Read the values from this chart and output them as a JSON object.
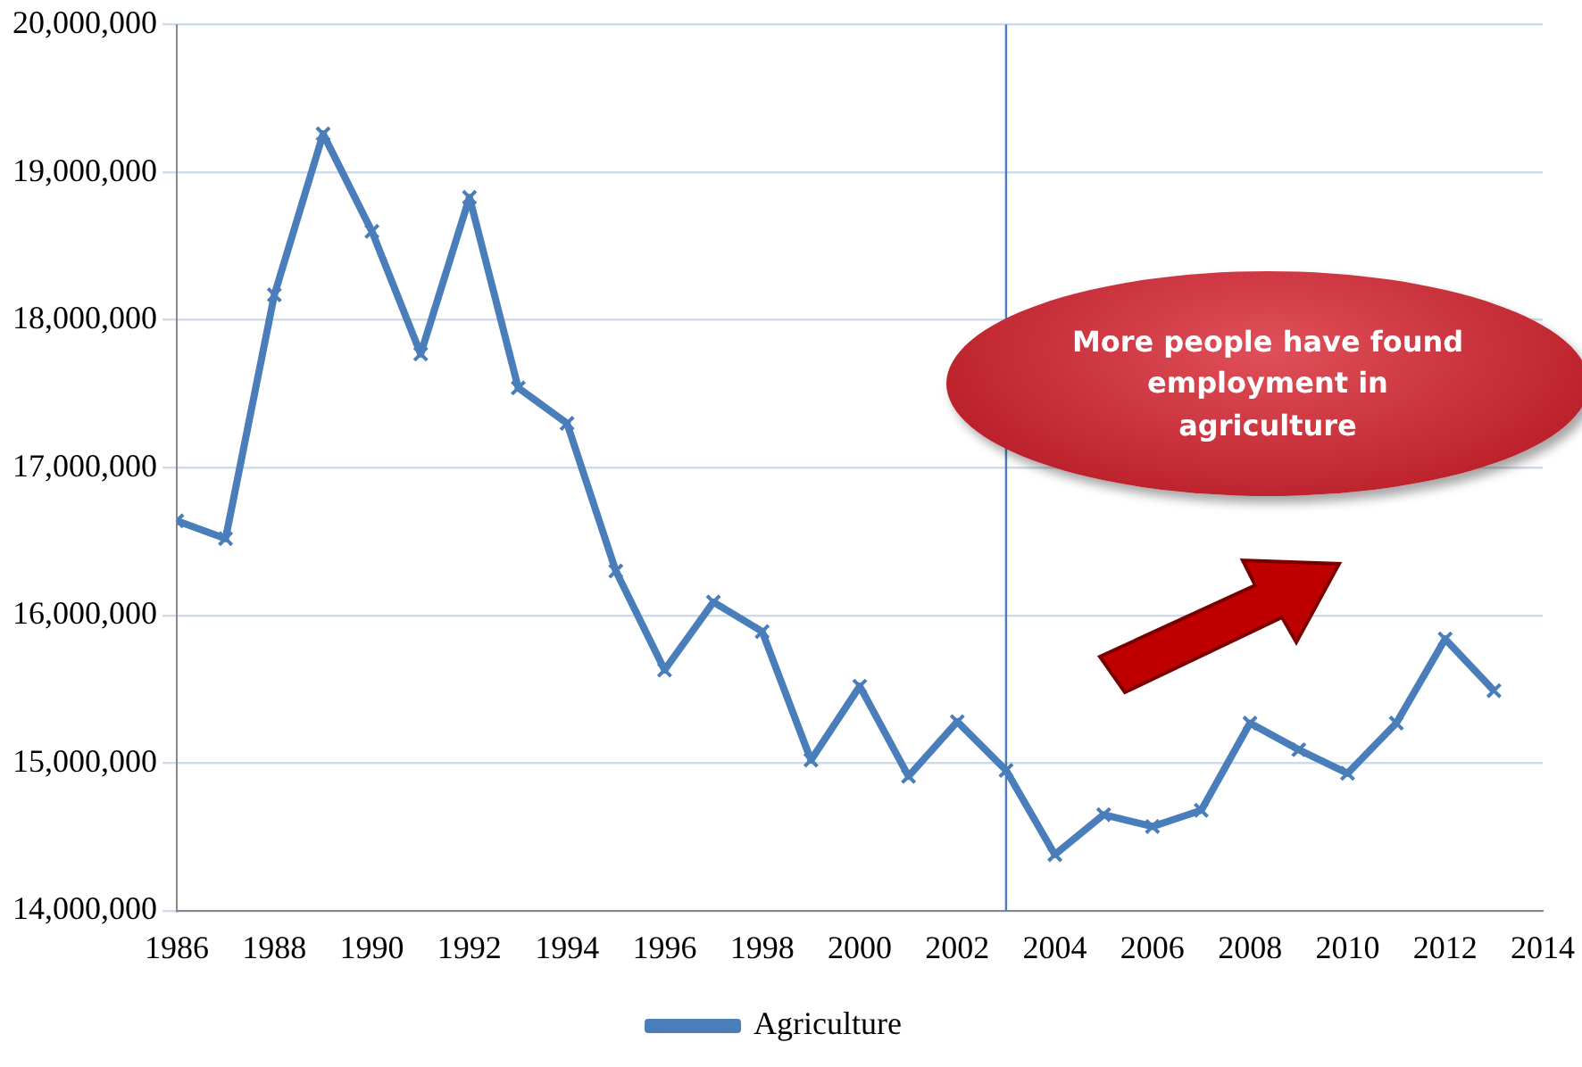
{
  "chart_data": {
    "type": "line",
    "x": [
      1986,
      1987,
      1988,
      1989,
      1990,
      1991,
      1992,
      1993,
      1994,
      1995,
      1996,
      1997,
      1998,
      1999,
      2000,
      2001,
      2002,
      2003,
      2004,
      2005,
      2006,
      2007,
      2008,
      2009,
      2010,
      2011,
      2012,
      2013
    ],
    "series": [
      {
        "name": "Agriculture",
        "color": "#4a7ebb",
        "values": [
          16640000,
          16520000,
          18170000,
          19260000,
          18600000,
          17770000,
          18830000,
          17540000,
          17300000,
          16300000,
          15630000,
          16090000,
          15890000,
          15020000,
          15520000,
          14910000,
          15280000,
          14950000,
          14380000,
          14650000,
          14570000,
          14680000,
          15270000,
          15090000,
          14930000,
          15270000,
          15840000,
          15490000
        ]
      }
    ],
    "xlim": [
      1986,
      2014
    ],
    "xticks": [
      1986,
      1988,
      1990,
      1992,
      1994,
      1996,
      1998,
      2000,
      2002,
      2004,
      2006,
      2008,
      2010,
      2012,
      2014
    ],
    "ylim": [
      14000000,
      20000000
    ],
    "yticks": [
      {
        "value": 14000000,
        "label": "14,000,000"
      },
      {
        "value": 15000000,
        "label": "15,000,000"
      },
      {
        "value": 16000000,
        "label": "16,000,000"
      },
      {
        "value": 17000000,
        "label": "17,000,000"
      },
      {
        "value": 18000000,
        "label": "18,000,000"
      },
      {
        "value": 19000000,
        "label": "19,000,000"
      },
      {
        "value": 20000000,
        "label": "20,000,000"
      }
    ],
    "grid": "y",
    "legend": "bottom",
    "marker": "cross",
    "line_style": "solid",
    "ref_lines": [
      {
        "axis": "x",
        "value": 2003,
        "color": "#4a7ebb"
      }
    ],
    "annotations": [
      "More people have found employment in agriculture"
    ]
  }
}
